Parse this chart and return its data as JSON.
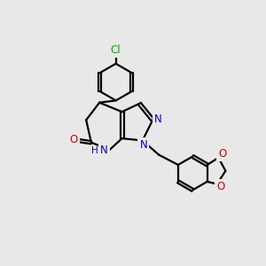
{
  "background_color": "#e8e8e8",
  "line_color": "#000000",
  "nitrogen_color": "#0000cc",
  "oxygen_color": "#cc0000",
  "chlorine_color": "#00aa00",
  "line_width": 1.6,
  "fig_width": 3.0,
  "fig_height": 3.0,
  "dpi": 100,
  "xlim": [
    0,
    10
  ],
  "ylim": [
    0,
    10
  ]
}
